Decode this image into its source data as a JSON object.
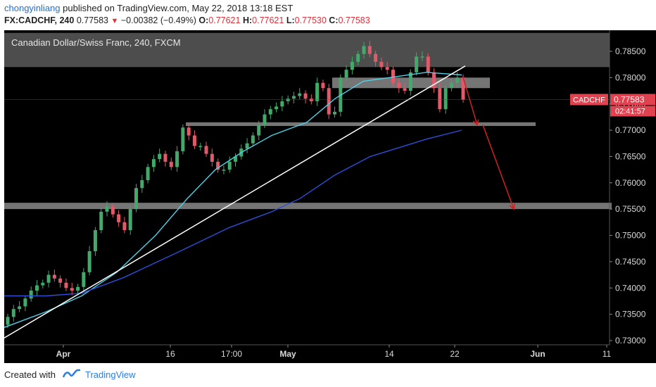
{
  "header": {
    "username": "chongyinliang",
    "published_text": "published on TradingView.com, May 22, 2018 13:18 EST",
    "symbol": "FX:CADCHF, 240",
    "last": "0.77583",
    "change": "−0.00382 (−0.49%)",
    "o_label": "O:",
    "o_value": "0.77621",
    "h_label": "H:",
    "h_value": "0.77621",
    "l_label": "L:",
    "l_value": "0.77530",
    "c_label": "C:",
    "c_value": "0.77583"
  },
  "chart_data": {
    "type": "candlestick",
    "title": "Canadian Dollar/Swiss Franc, 240, FXCM",
    "x_tick_labels": [
      "Apr",
      "16",
      "17:00",
      "May",
      "14",
      "22",
      "Jun",
      "11"
    ],
    "y_tick_labels": [
      "0.78500",
      "0.78000",
      "0.77500",
      "0.77000",
      "0.76500",
      "0.76000",
      "0.75500",
      "0.75000",
      "0.74500",
      "0.74000",
      "0.73500",
      "0.73000"
    ],
    "ylim": [
      0.7292,
      0.789
    ],
    "price_tag": {
      "symbol": "CADCHF",
      "value": "0.77583",
      "countdown": "02:41:57"
    },
    "resistance_zones": [
      [
        0.778,
        0.78
      ],
      [
        0.7708,
        0.7715
      ],
      [
        0.755,
        0.7562
      ]
    ],
    "top_zone": [
      0.782,
      0.7885
    ],
    "trendline": {
      "from": [
        "Mar 20",
        0.7305
      ],
      "to": [
        "May 22",
        0.7822
      ]
    },
    "projection_arrows": [
      {
        "from": [
          "May 22",
          0.78
        ],
        "to": [
          "May 24",
          0.771
        ]
      },
      {
        "from": [
          "May 24",
          0.771
        ],
        "to": [
          "May 27",
          0.755
        ]
      }
    ],
    "moving_averages": [
      {
        "color": "#4fd1e8",
        "values": [
          0.7325,
          0.7355,
          0.7385,
          0.743,
          0.75,
          0.757,
          0.7625,
          0.766,
          0.769,
          0.7715,
          0.776,
          0.7793,
          0.781,
          0.7805
        ]
      },
      {
        "color": "#2c4fd8",
        "values": [
          0.7385,
          0.7385,
          0.739,
          0.742,
          0.747,
          0.7515,
          0.7545,
          0.757,
          0.7615,
          0.765,
          0.7683,
          0.77
        ]
      }
    ],
    "close_series": [
      0.7345,
      0.736,
      0.7365,
      0.738,
      0.7395,
      0.7405,
      0.741,
      0.7425,
      0.7418,
      0.741,
      0.74,
      0.7395,
      0.7402,
      0.743,
      0.747,
      0.751,
      0.7545,
      0.7555,
      0.754,
      0.7525,
      0.751,
      0.755,
      0.759,
      0.7605,
      0.763,
      0.7645,
      0.7655,
      0.764,
      0.763,
      0.766,
      0.7705,
      0.769,
      0.767,
      0.767,
      0.7655,
      0.764,
      0.7625,
      0.7625,
      0.764,
      0.765,
      0.7665,
      0.7675,
      0.769,
      0.771,
      0.773,
      0.774,
      0.7745,
      0.7755,
      0.776,
      0.7765,
      0.777,
      0.776,
      0.7755,
      0.779,
      0.778,
      0.773,
      0.7735,
      0.78,
      0.7815,
      0.783,
      0.7845,
      0.786,
      0.7845,
      0.783,
      0.782,
      0.7815,
      0.779,
      0.778,
      0.7775,
      0.781,
      0.784,
      0.784,
      0.781,
      0.778,
      0.774,
      0.778,
      0.779,
      0.78,
      0.7758
    ]
  },
  "footer": {
    "created_with": "Created with",
    "brand": "TradingView"
  }
}
